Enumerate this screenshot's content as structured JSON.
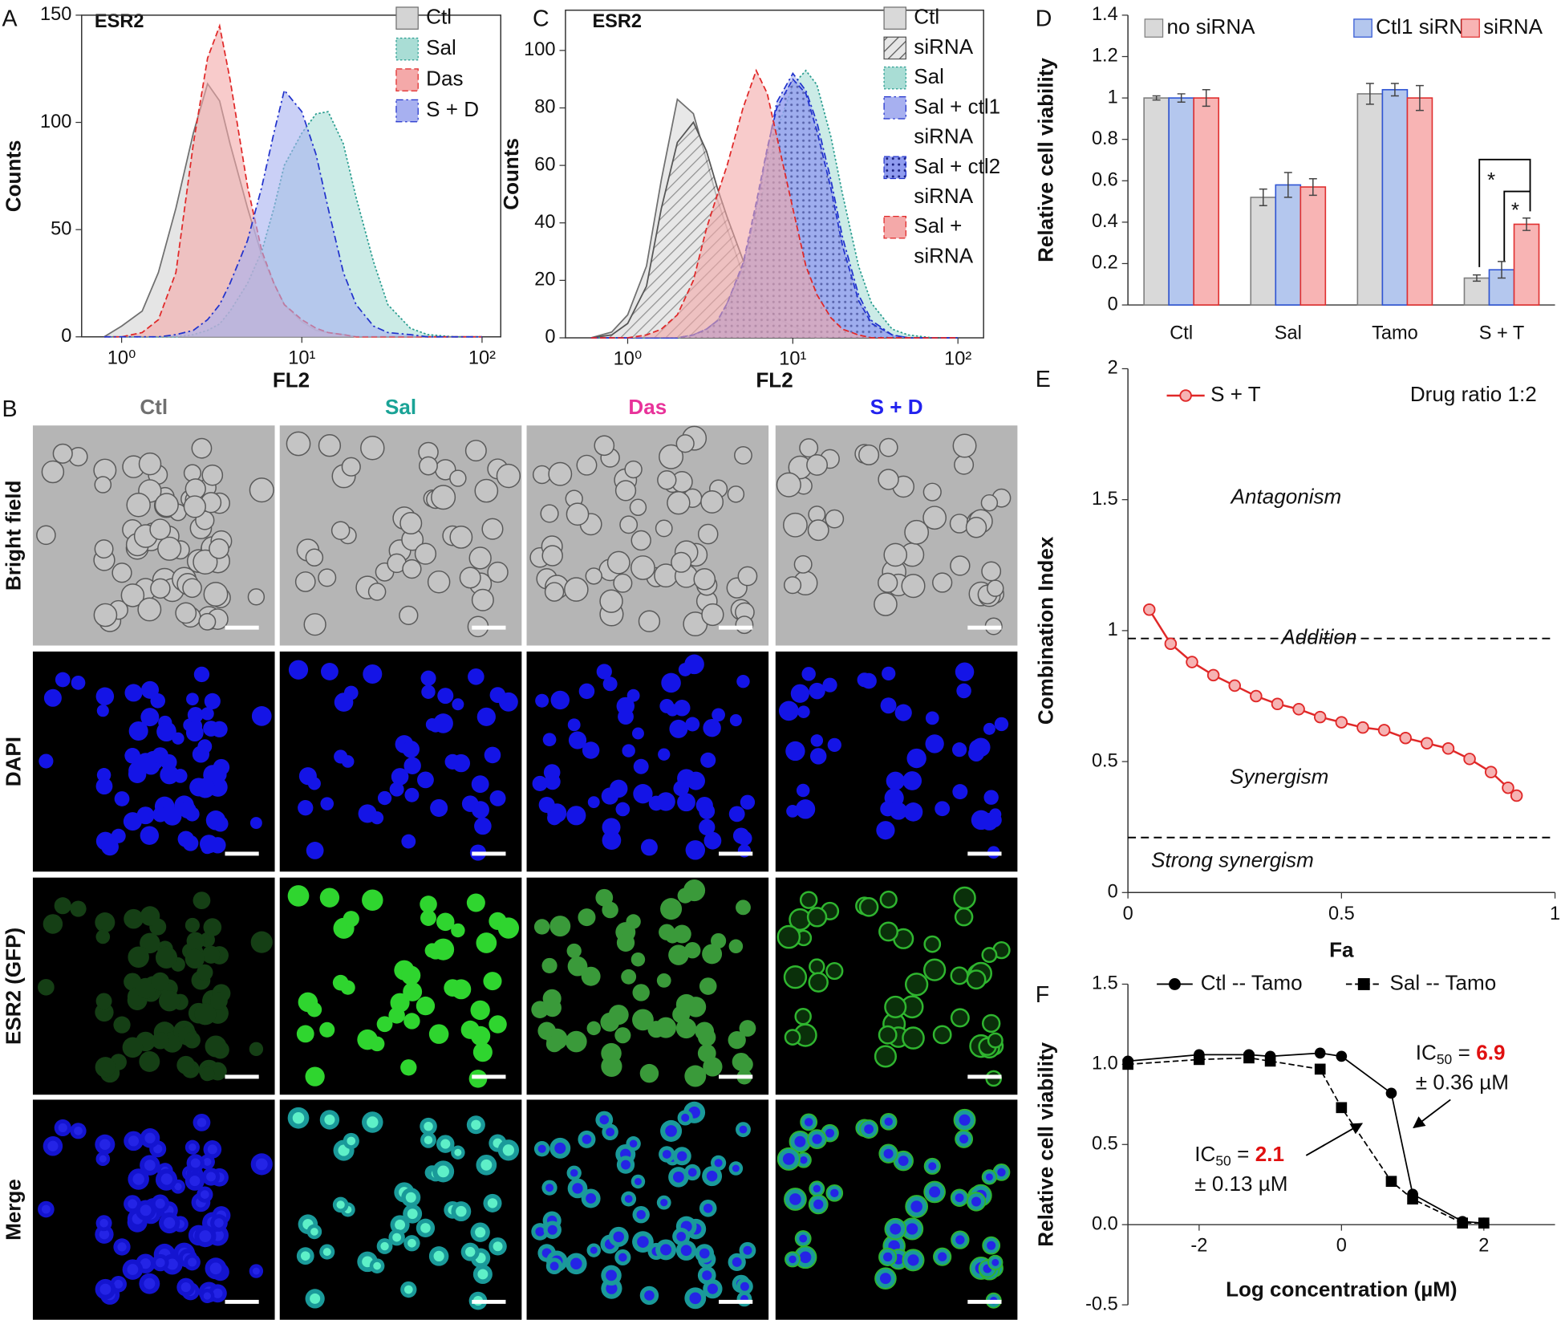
{
  "micrographs": {
    "label": "B",
    "columns": [
      {
        "name": "Ctl",
        "color": "#707070"
      },
      {
        "name": "Sal",
        "color": "#1aa396"
      },
      {
        "name": "Das",
        "color": "#e8339a"
      },
      {
        "name": "S + D",
        "color": "#2222ee"
      }
    ],
    "rows": [
      "Bright field",
      "DAPI",
      "ESR2 (GFP)",
      "Merge"
    ]
  },
  "chart_data": [
    {
      "label": "A",
      "type": "area",
      "title": "ESR2",
      "x_label": "FL2",
      "y_label": "Counts",
      "x_scale": "log",
      "xlim": [
        0.6,
        127
      ],
      "xticks": [
        {
          "value": 1,
          "label": "10⁰"
        },
        {
          "value": 10,
          "label": "10¹"
        },
        {
          "value": 100,
          "label": "10²"
        }
      ],
      "ylim": [
        0,
        150
      ],
      "yticks": [
        0,
        50,
        100,
        150
      ],
      "x": [
        0.8,
        1,
        1.3,
        1.6,
        2,
        2.5,
        3,
        3.5,
        4,
        5,
        6,
        7,
        8,
        10,
        12,
        14,
        17,
        20,
        25,
        30,
        40,
        50,
        70,
        100
      ],
      "series": [
        {
          "name": "Ctl",
          "color": "#6f6f6f",
          "fill": "#d4d4d4",
          "line_style": "solid",
          "values": [
            0,
            5,
            12,
            30,
            60,
            95,
            118,
            110,
            90,
            60,
            38,
            25,
            15,
            7,
            3,
            2,
            1,
            0,
            0,
            0,
            0,
            0,
            0,
            0
          ]
        },
        {
          "name": "Sal",
          "color": "#2a9d90",
          "fill": "#a9ddd5",
          "line_style": "dotted",
          "values": [
            0,
            0,
            0,
            0,
            0,
            1,
            3,
            6,
            12,
            25,
            40,
            60,
            80,
            95,
            104,
            105,
            90,
            65,
            35,
            15,
            4,
            1,
            0,
            0
          ]
        },
        {
          "name": "Das",
          "color": "#e02828",
          "fill": "#f4a9a9",
          "line_style": "dashed",
          "values": [
            0,
            0,
            2,
            8,
            30,
            90,
            130,
            145,
            120,
            70,
            40,
            25,
            15,
            8,
            4,
            2,
            1,
            0,
            0,
            0,
            0,
            0,
            0,
            0
          ]
        },
        {
          "name": "S + D",
          "color": "#2233cc",
          "fill": "#a7b0f0",
          "line_style": "dashdot",
          "values": [
            0,
            0,
            0,
            0,
            1,
            3,
            8,
            15,
            25,
            45,
            70,
            95,
            115,
            105,
            85,
            60,
            30,
            15,
            5,
            2,
            1,
            0,
            0,
            0
          ]
        }
      ]
    },
    {
      "label": "C",
      "type": "area",
      "title": "ESR2",
      "x_label": "FL2",
      "y_label": "Counts",
      "x_scale": "log",
      "xlim": [
        0.42,
        143
      ],
      "xticks": [
        {
          "value": 1,
          "label": "10⁰"
        },
        {
          "value": 10,
          "label": "10¹"
        },
        {
          "value": 100,
          "label": "10²"
        }
      ],
      "ylim": [
        0,
        114
      ],
      "yticks": [
        0,
        20,
        40,
        60,
        80,
        100
      ],
      "x": [
        0.6,
        0.8,
        1,
        1.3,
        1.6,
        2,
        2.5,
        3,
        3.5,
        4,
        5,
        6,
        7,
        8,
        10,
        12,
        14,
        17,
        20,
        25,
        30,
        40,
        50,
        70,
        100
      ],
      "series": [
        {
          "name": "Ctl",
          "color": "#6f6f6f",
          "fill": "#d9d9d9",
          "line_style": "solid",
          "values": [
            0,
            2,
            8,
            25,
            55,
            83,
            78,
            62,
            48,
            38,
            22,
            12,
            7,
            4,
            2,
            1,
            0,
            0,
            0,
            0,
            0,
            0,
            0,
            0,
            0
          ]
        },
        {
          "name": "siRNA",
          "color": "#555555",
          "fill": "#e6e6e6",
          "pattern": "hatch",
          "line_style": "solid",
          "values": [
            0,
            1,
            5,
            18,
            45,
            68,
            75,
            65,
            52,
            42,
            27,
            17,
            11,
            7,
            4,
            2,
            1,
            0,
            0,
            0,
            0,
            0,
            0,
            0,
            0
          ]
        },
        {
          "name": "Sal",
          "color": "#2a9d90",
          "fill": "#a9ddd5",
          "line_style": "dotted",
          "values": [
            0,
            0,
            0,
            0,
            0,
            0,
            1,
            3,
            6,
            10,
            22,
            40,
            58,
            72,
            88,
            93,
            88,
            70,
            50,
            25,
            12,
            3,
            1,
            0,
            0
          ]
        },
        {
          "name": "Sal + ctl1 siRNA",
          "color": "#2233cc",
          "fill": "#a7b0f0",
          "line_style": "dashdot",
          "values": [
            0,
            0,
            0,
            0,
            0,
            0,
            1,
            3,
            6,
            12,
            25,
            45,
            65,
            82,
            92,
            86,
            75,
            55,
            35,
            15,
            6,
            1,
            0,
            0,
            0
          ]
        },
        {
          "name": "Sal + ctl2 siRNA",
          "color": "#2233cc",
          "fill": "#8f9bef",
          "pattern": "dots",
          "line_style": "dashed",
          "values": [
            0,
            0,
            0,
            0,
            0,
            0,
            1,
            3,
            6,
            12,
            26,
            47,
            66,
            80,
            90,
            85,
            72,
            52,
            32,
            13,
            5,
            1,
            0,
            0,
            0
          ]
        },
        {
          "name": "Sal + siRNA",
          "color": "#e02828",
          "fill": "#f4a9a9",
          "line_style": "dashed",
          "values": [
            0,
            0,
            0,
            1,
            3,
            8,
            20,
            38,
            50,
            60,
            80,
            93,
            85,
            70,
            45,
            25,
            15,
            7,
            3,
            1,
            0,
            0,
            0,
            0,
            0
          ]
        }
      ]
    },
    {
      "label": "D",
      "type": "bar",
      "y_label": "Relative cell viability",
      "categories": [
        "Ctl",
        "Sal",
        "Tamo",
        "S + T"
      ],
      "ylim": [
        0,
        1.4
      ],
      "yticks": [
        0,
        0.2,
        0.4,
        0.6,
        0.8,
        1,
        1.2,
        1.4
      ],
      "series": [
        {
          "name": "no siRNA",
          "color": "#d9d9d9",
          "edge_color": "#7f7f7f",
          "values": [
            1.0,
            0.52,
            1.02,
            0.13
          ],
          "errors": [
            0.01,
            0.04,
            0.05,
            0.015
          ]
        },
        {
          "name": "Ctl1 siRNA",
          "color": "#b4c7ee",
          "edge_color": "#2f55d4",
          "values": [
            1.0,
            0.58,
            1.04,
            0.17
          ],
          "errors": [
            0.02,
            0.06,
            0.03,
            0.04
          ]
        },
        {
          "name": "siRNA",
          "color": "#f8b4b4",
          "edge_color": "#e03030",
          "values": [
            1.0,
            0.57,
            1.0,
            0.39
          ],
          "errors": [
            0.04,
            0.04,
            0.06,
            0.03
          ]
        }
      ],
      "annotations": [
        "*",
        "*"
      ]
    },
    {
      "label": "E",
      "type": "line",
      "x_label": "Fa",
      "y_label": "Combination Index",
      "xlim": [
        0,
        1
      ],
      "xticks": [
        0,
        0.5,
        1
      ],
      "ylim": [
        0,
        2
      ],
      "yticks": [
        0,
        0.5,
        1,
        1.5,
        2
      ],
      "reference_lines": [
        0.97,
        0.21
      ],
      "x": [
        0.05,
        0.1,
        0.15,
        0.2,
        0.25,
        0.3,
        0.35,
        0.4,
        0.45,
        0.5,
        0.55,
        0.6,
        0.65,
        0.7,
        0.75,
        0.8,
        0.85,
        0.89,
        0.91
      ],
      "series": [
        {
          "name": "S + T",
          "color": "#e02828",
          "values": [
            1.08,
            0.95,
            0.88,
            0.83,
            0.79,
            0.75,
            0.72,
            0.7,
            0.67,
            0.65,
            0.63,
            0.62,
            0.59,
            0.57,
            0.55,
            0.51,
            0.46,
            0.4,
            0.37
          ]
        }
      ],
      "annotations": [
        "Drug ratio 1:2",
        "Antagonism",
        "Addition",
        "Synergism",
        "Strong synergism"
      ]
    },
    {
      "label": "F",
      "type": "scatter",
      "x_label": "Log concentration (µM)",
      "y_label": "Relative cell viability",
      "xlim": [
        -3,
        3
      ],
      "xticks": [
        -2,
        0,
        2
      ],
      "ylim": [
        -0.5,
        1.5
      ],
      "yticks": [
        -0.5,
        {
          "value": 0,
          "label": "0.0"
        },
        0.5,
        {
          "value": 1,
          "label": "1.0"
        },
        1.5
      ],
      "x": [
        -3,
        -2,
        -1.3,
        -1,
        -0.3,
        0,
        0.7,
        1,
        1.7,
        2
      ],
      "series": [
        {
          "name": "Ctl -- Tamo",
          "color": "#000000",
          "marker": "circle",
          "line_style": "solid",
          "values": [
            1.02,
            1.06,
            1.06,
            1.05,
            1.07,
            1.05,
            0.82,
            0.19,
            0.02,
            0.01
          ]
        },
        {
          "name": "Sal -- Tamo",
          "color": "#000000",
          "marker": "square",
          "line_style": "dashed",
          "values": [
            1.0,
            1.03,
            1.04,
            1.02,
            0.97,
            0.73,
            0.27,
            0.16,
            0.01,
            0.01
          ]
        }
      ],
      "annotations": [
        {
          "prefix": "IC",
          "subscript": "50",
          "equals": "=",
          "value": "6.9",
          "error": "± 0.36 µM"
        },
        {
          "prefix": "IC",
          "subscript": "50",
          "equals": "=",
          "value": "2.1",
          "error": "± 0.13 µM"
        }
      ]
    }
  ]
}
